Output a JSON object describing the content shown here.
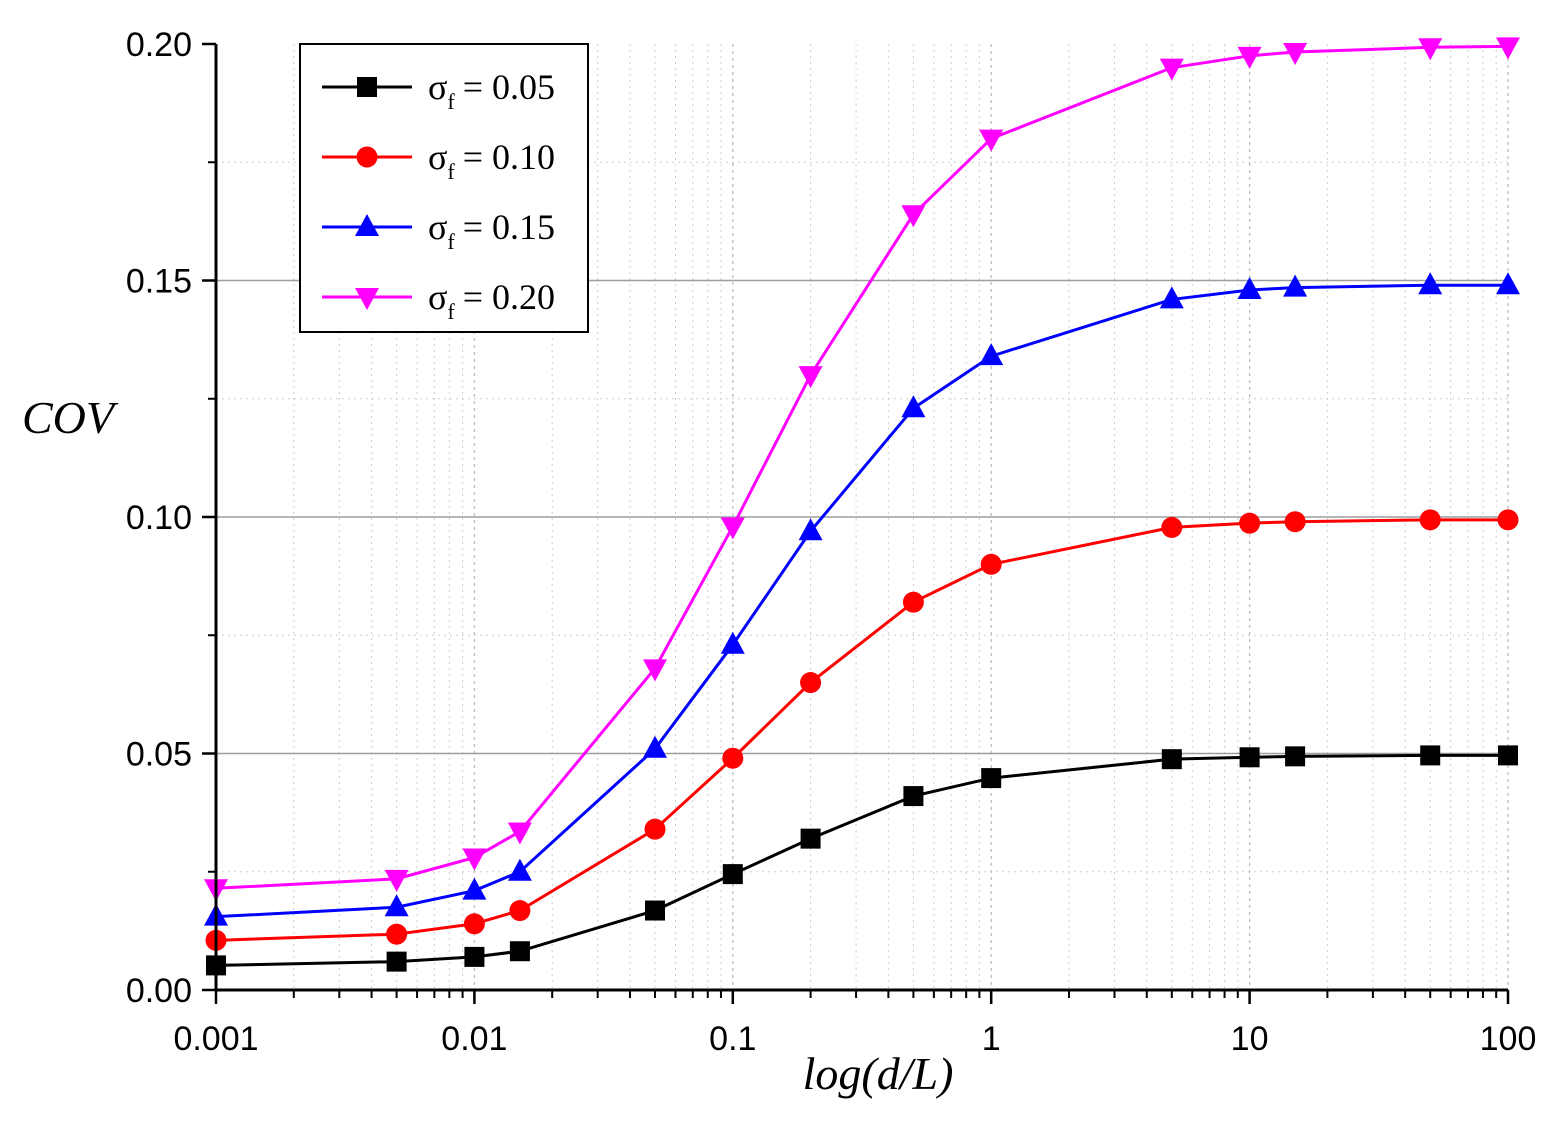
{
  "chart_data": {
    "type": "line",
    "title": "",
    "xlabel": "log(d/L)",
    "ylabel": "COV",
    "xscale": "log",
    "xlim": [
      0.001,
      100
    ],
    "ylim": [
      0.0,
      0.2
    ],
    "x_ticks": [
      0.001,
      0.01,
      0.1,
      1,
      10,
      100
    ],
    "x_tick_labels": [
      "0.001",
      "0.01",
      "0.1",
      "1",
      "10",
      "100"
    ],
    "y_ticks": [
      0.0,
      0.05,
      0.1,
      0.15,
      0.2
    ],
    "y_tick_labels": [
      "0.00",
      "0.05",
      "0.10",
      "0.15",
      "0.20"
    ],
    "grid": true,
    "legend_position": "top-left",
    "x": [
      0.001,
      0.005,
      0.01,
      0.015,
      0.05,
      0.1,
      0.2,
      0.5,
      1,
      5,
      10,
      15,
      50,
      100
    ],
    "series": [
      {
        "name": "σf = 0.05",
        "sigma_symbol": "σ",
        "sigma_sub": "f",
        "sigma_value": "= 0.05",
        "color": "#000000",
        "marker": "square",
        "values": [
          0.0052,
          0.006,
          0.007,
          0.0082,
          0.0168,
          0.0245,
          0.032,
          0.041,
          0.0448,
          0.0488,
          0.0492,
          0.0494,
          0.0496,
          0.0496
        ]
      },
      {
        "name": "σf = 0.10",
        "sigma_symbol": "σ",
        "sigma_sub": "f",
        "sigma_value": "= 0.10",
        "color": "#ff0000",
        "marker": "circle",
        "values": [
          0.0105,
          0.0118,
          0.014,
          0.0168,
          0.034,
          0.049,
          0.065,
          0.082,
          0.09,
          0.0978,
          0.0987,
          0.099,
          0.0994,
          0.0994
        ]
      },
      {
        "name": "σf = 0.15",
        "sigma_symbol": "σ",
        "sigma_sub": "f",
        "sigma_value": "= 0.15",
        "color": "#0000ff",
        "marker": "triangle-up",
        "values": [
          0.0155,
          0.0175,
          0.021,
          0.025,
          0.051,
          0.073,
          0.097,
          0.123,
          0.134,
          0.146,
          0.148,
          0.1485,
          0.149,
          0.149
        ]
      },
      {
        "name": "σf = 0.20",
        "sigma_symbol": "σ",
        "sigma_sub": "f",
        "sigma_value": "= 0.20",
        "color": "#ff00ff",
        "marker": "triangle-down",
        "values": [
          0.0215,
          0.0235,
          0.028,
          0.0335,
          0.068,
          0.098,
          0.13,
          0.164,
          0.18,
          0.195,
          0.1975,
          0.1983,
          0.1993,
          0.1995
        ]
      }
    ]
  }
}
